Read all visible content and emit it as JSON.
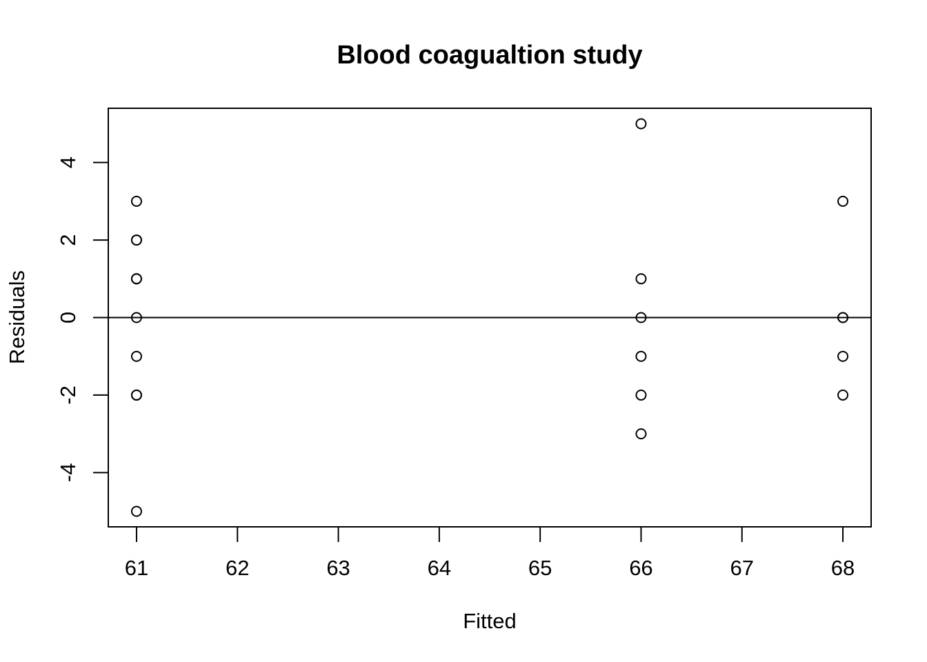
{
  "chart_data": {
    "type": "scatter",
    "title": "Blood coagualtion study",
    "xlabel": "Fitted",
    "ylabel": "Residuals",
    "xlim": [
      60.72,
      68.28
    ],
    "ylim": [
      -5.4,
      5.4
    ],
    "x_ticks": [
      61,
      62,
      63,
      64,
      65,
      66,
      67,
      68
    ],
    "y_ticks": [
      -4,
      -2,
      0,
      2,
      4
    ],
    "grid": false,
    "legend": "none",
    "reference_line": {
      "orientation": "horizontal",
      "y": 0
    },
    "marker": "open-circle",
    "points": [
      {
        "x": 61,
        "y": 3
      },
      {
        "x": 61,
        "y": 2
      },
      {
        "x": 61,
        "y": 2
      },
      {
        "x": 61,
        "y": 1
      },
      {
        "x": 61,
        "y": 1
      },
      {
        "x": 61,
        "y": 0
      },
      {
        "x": 61,
        "y": -1
      },
      {
        "x": 61,
        "y": -2
      },
      {
        "x": 61,
        "y": -2
      },
      {
        "x": 61,
        "y": -5
      },
      {
        "x": 66,
        "y": 5
      },
      {
        "x": 66,
        "y": 1
      },
      {
        "x": 66,
        "y": 0
      },
      {
        "x": 66,
        "y": -1
      },
      {
        "x": 66,
        "y": -2
      },
      {
        "x": 66,
        "y": -3
      },
      {
        "x": 68,
        "y": 3
      },
      {
        "x": 68,
        "y": 0
      },
      {
        "x": 68,
        "y": 0
      },
      {
        "x": 68,
        "y": -1
      },
      {
        "x": 68,
        "y": -2
      }
    ]
  }
}
